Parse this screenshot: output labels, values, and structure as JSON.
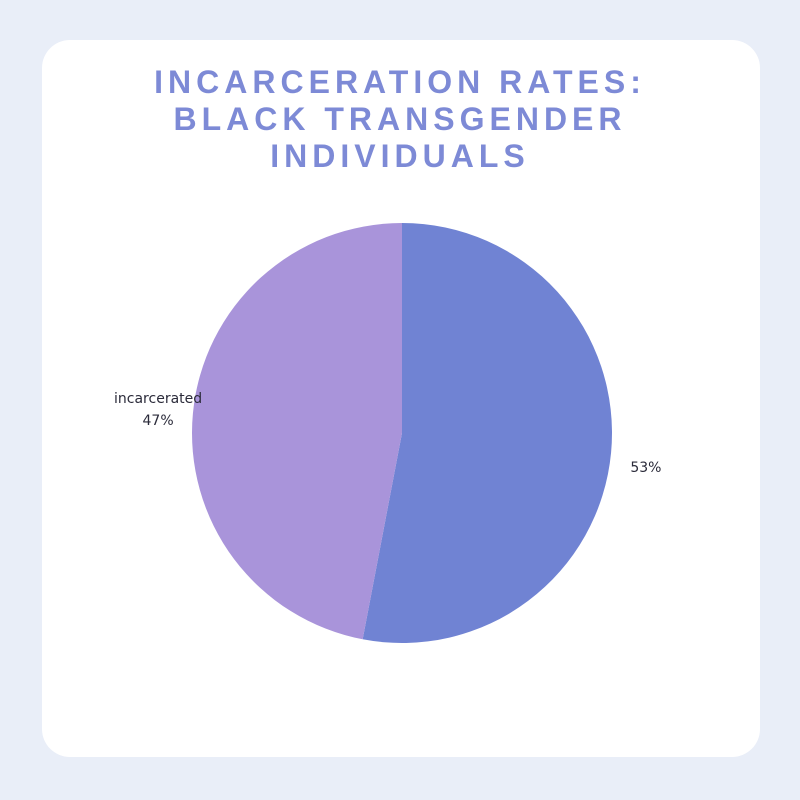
{
  "chart_data": {
    "type": "pie",
    "title": "INCARCERATION RATES: BLACK TRANSGENDER INDIVIDUALS",
    "categories": [
      null,
      "incarcerated"
    ],
    "values": [
      53,
      47
    ],
    "value_labels": [
      "53%",
      "47%"
    ],
    "colors": [
      "#7083d3",
      "#a994da"
    ]
  }
}
